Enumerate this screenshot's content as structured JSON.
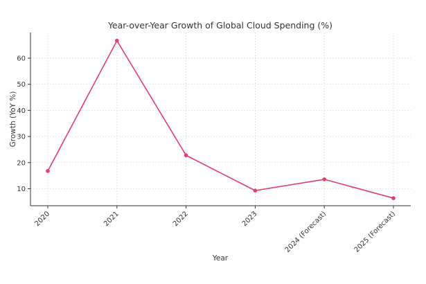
{
  "chart_data": {
    "type": "line",
    "title": "Year-over-Year Growth of Global Cloud Spending (%)",
    "xlabel": "Year",
    "ylabel": "Growth (YoY %)",
    "categories": [
      "2020",
      "2021",
      "2022",
      "2023",
      "2024 (Forecast)",
      "2025 (Forecast)"
    ],
    "series": [
      {
        "values": [
          16.8,
          66.7,
          22.8,
          9.3,
          13.6,
          6.4
        ]
      }
    ],
    "yticks": [
      10,
      20,
      30,
      40,
      50,
      60
    ],
    "ylim": [
      3.5,
      69.8
    ],
    "grid": true,
    "line_color": "#e0406a"
  }
}
